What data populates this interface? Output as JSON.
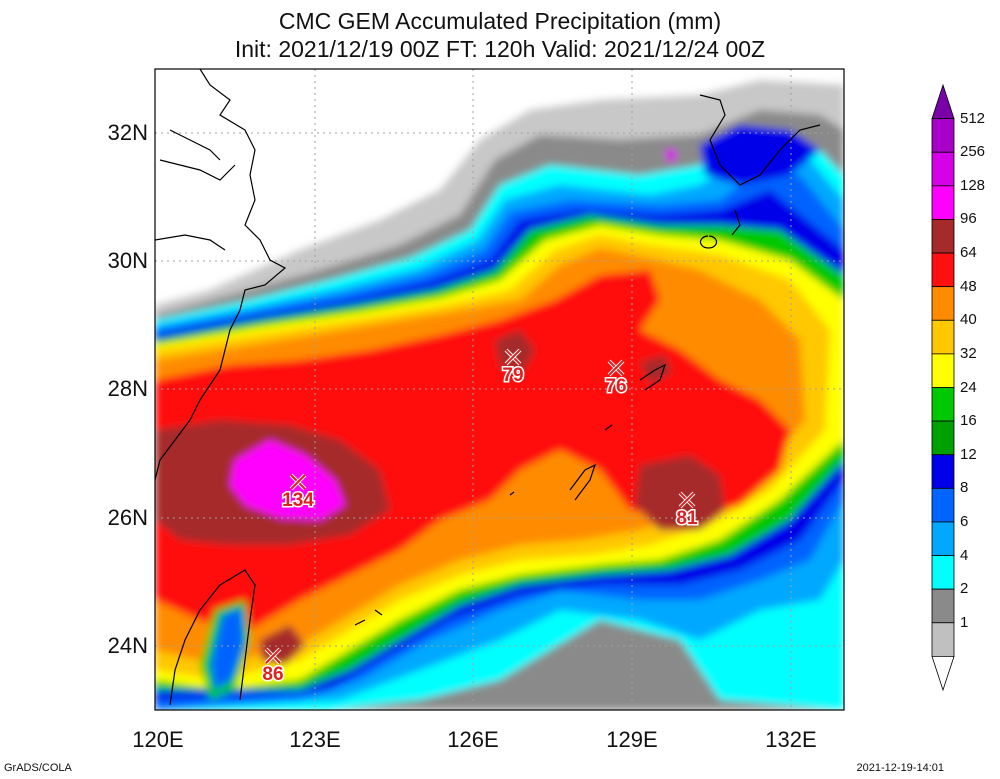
{
  "title": {
    "line1": "CMC GEM Accumulated Precipitation (mm)",
    "line2": "Init: 2021/12/19 00Z  FT: 120h  Valid: 2021/12/24 00Z"
  },
  "axes": {
    "lat_labels": [
      "32N",
      "30N",
      "28N",
      "26N",
      "24N"
    ],
    "lon_labels": [
      "120E",
      "123E",
      "126E",
      "129E",
      "132E"
    ]
  },
  "colorbar": {
    "levels": [
      "512",
      "256",
      "128",
      "96",
      "64",
      "48",
      "40",
      "32",
      "24",
      "16",
      "12",
      "8",
      "6",
      "4",
      "2",
      "1"
    ],
    "colors": [
      "#7a00a8",
      "#a800c8",
      "#d400e8",
      "#ff00ff",
      "#a62a2a",
      "#ff1010",
      "#ff8c00",
      "#ffc800",
      "#ffff00",
      "#00c800",
      "#00a000",
      "#0000e8",
      "#0064ff",
      "#00a8ff",
      "#00ffff",
      "#8a8a8a",
      "#c0c0c0",
      "#ffffff"
    ]
  },
  "markers": [
    {
      "value": "134"
    },
    {
      "value": "79"
    },
    {
      "value": "76"
    },
    {
      "value": "81"
    },
    {
      "value": "86"
    }
  ],
  "credits": {
    "left": "GrADS/COLA",
    "right": "2021-12-19-14:01"
  }
}
